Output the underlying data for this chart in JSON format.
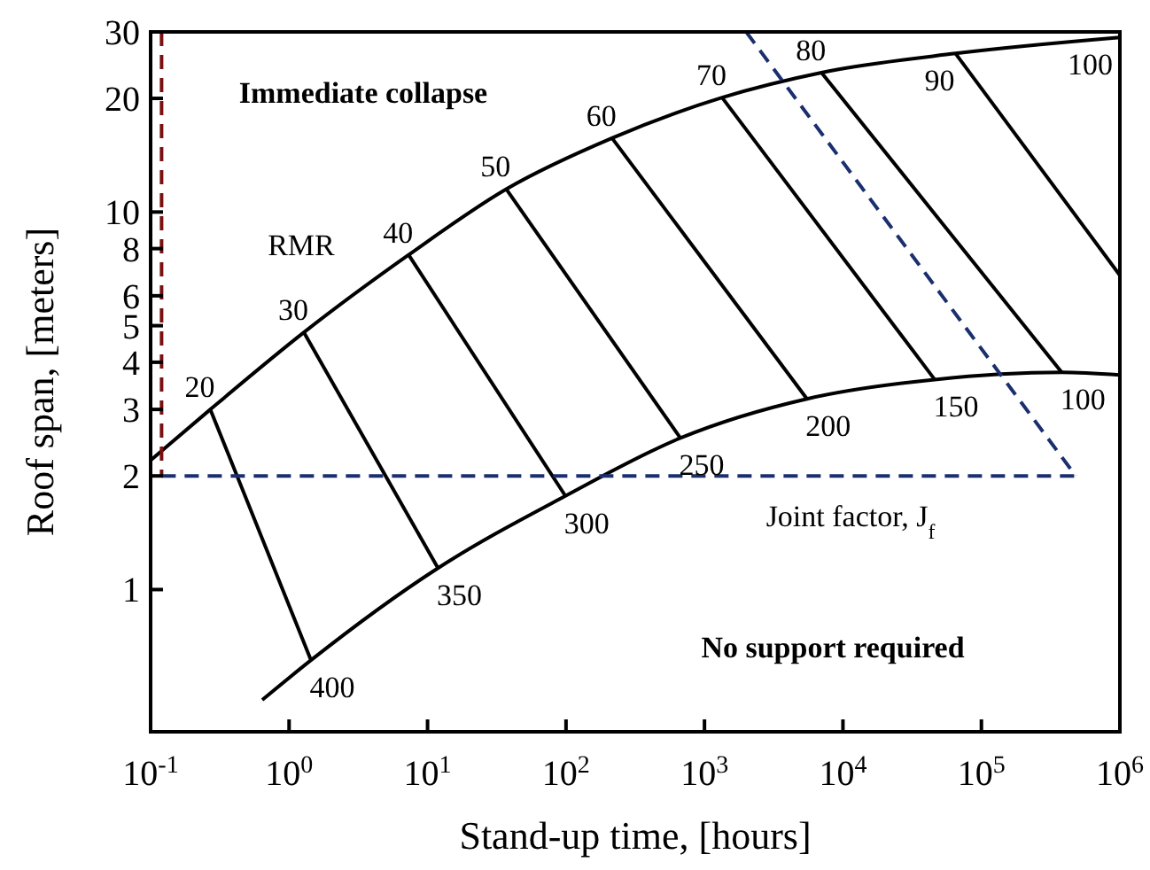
{
  "chart_data": {
    "type": "line",
    "xlabel": "Stand-up time, [hours]",
    "ylabel": "Roof span, [meters]",
    "log": "xy",
    "grid": false,
    "marker": "none",
    "line_style": "solid",
    "xlim": [
      0.1,
      1000000
    ],
    "ylim": [
      0.42,
      30
    ],
    "xticks": [
      {
        "value": 0.1,
        "label": "10$^{-1}$"
      },
      {
        "value": 1,
        "label": "10$^{0}$"
      },
      {
        "value": 10,
        "label": "10$^{1}$"
      },
      {
        "value": 100,
        "label": "10$^{2}$"
      },
      {
        "value": 1000,
        "label": "10$^{3}$"
      },
      {
        "value": 10000,
        "label": "10$^{4}$"
      },
      {
        "value": 100000,
        "label": "10$^{5}$"
      },
      {
        "value": 1000000,
        "label": "10$^{6}$"
      }
    ],
    "yticks": [
      1,
      2,
      3,
      4,
      5,
      6,
      8,
      10,
      20,
      30
    ],
    "series": [
      {
        "color": "#000000",
        "x": [
          0.1,
          0.27,
          1.28,
          7.3,
          37,
          215,
          1340,
          7000,
          65000,
          1000000
        ],
        "values": [
          2.2,
          3.0,
          4.8,
          7.7,
          11.5,
          15.7,
          20.1,
          23.4,
          26.3,
          29
        ]
      },
      {
        "color": "#000000",
        "x": [
          0.64,
          1.44,
          11.9,
          99,
          670,
          5500,
          46000,
          380000,
          1000000
        ],
        "values": [
          0.51,
          0.65,
          1.14,
          1.77,
          2.52,
          3.2,
          3.6,
          3.76,
          3.7
        ]
      },
      {
        "color": "#000000",
        "x": [
          0.27,
          1.44
        ],
        "values": [
          3.0,
          0.65
        ]
      },
      {
        "color": "#000000",
        "x": [
          1.28,
          11.9
        ],
        "values": [
          4.8,
          1.14
        ]
      },
      {
        "color": "#000000",
        "x": [
          7.3,
          99
        ],
        "values": [
          7.7,
          1.77
        ]
      },
      {
        "color": "#000000",
        "x": [
          37,
          670
        ],
        "values": [
          11.5,
          2.52
        ]
      },
      {
        "color": "#000000",
        "x": [
          215,
          5500
        ],
        "values": [
          15.7,
          3.2
        ]
      },
      {
        "color": "#000000",
        "x": [
          1340,
          46000
        ],
        "values": [
          20.1,
          3.6
        ]
      },
      {
        "color": "#000000",
        "x": [
          7000,
          380000
        ],
        "values": [
          23.4,
          3.76
        ]
      },
      {
        "color": "#000000",
        "x": [
          65000,
          1000000
        ],
        "values": [
          26.3,
          6.8
        ]
      },
      {
        "color": "#7a1010",
        "line_style": "dashed",
        "x": [
          0.12,
          0.12
        ],
        "values": [
          30,
          2
        ]
      },
      {
        "color": "#1a2f6e",
        "line_style": "dashed",
        "x": [
          0.12,
          480000
        ],
        "values": [
          2,
          2
        ]
      },
      {
        "color": "#1a2f6e",
        "line_style": "dashed",
        "x": [
          2000,
          480000
        ],
        "values": [
          30,
          2
        ]
      }
    ],
    "annotations": [
      "Immediate collapse",
      "No support required",
      "RMR",
      "Joint factor, J$_{f}$",
      {
        "text": "20",
        "x": 0.27,
        "y": 3.0
      },
      {
        "text": "30",
        "x": 1.28,
        "y": 4.8
      },
      {
        "text": "40",
        "x": 7.3,
        "y": 7.7
      },
      {
        "text": "50",
        "x": 37,
        "y": 11.5
      },
      {
        "text": "60",
        "x": 215,
        "y": 15.7
      },
      {
        "text": "70",
        "x": 1340,
        "y": 20.1
      },
      {
        "text": "80",
        "x": 7000,
        "y": 23.4
      },
      {
        "text": "90",
        "x": 65000,
        "y": 26.3
      },
      {
        "text": "100",
        "x": 1000000,
        "y": 29
      },
      {
        "text": "400",
        "x": 1.44,
        "y": 0.65
      },
      {
        "text": "350",
        "x": 11.9,
        "y": 1.14
      },
      {
        "text": "300",
        "x": 99,
        "y": 1.77
      },
      {
        "text": "250",
        "x": 670,
        "y": 2.52
      },
      {
        "text": "200",
        "x": 5500,
        "y": 3.2
      },
      {
        "text": "150",
        "x": 46000,
        "y": 3.6
      },
      {
        "text": "100",
        "x": 380000,
        "y": 3.76
      }
    ]
  }
}
